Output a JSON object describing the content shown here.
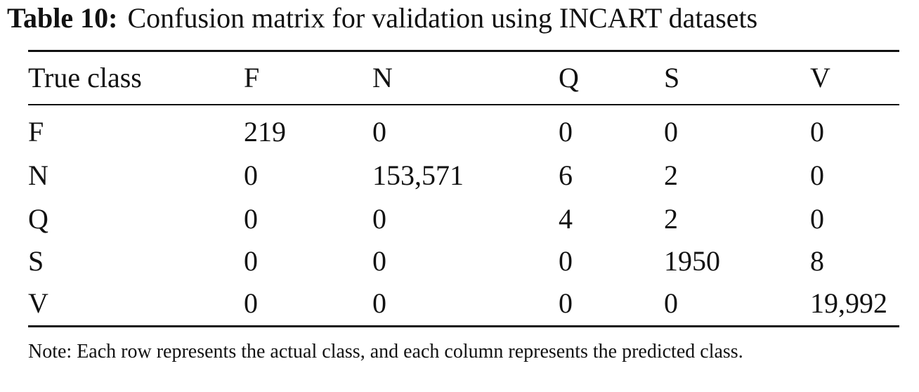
{
  "title": {
    "label": "Table 10:",
    "text": "Confusion matrix for validation using INCART datasets"
  },
  "table": {
    "header": [
      "True class",
      "F",
      "N",
      "Q",
      "S",
      "V"
    ],
    "rows": [
      [
        "F",
        "219",
        "0",
        "0",
        "0",
        "0"
      ],
      [
        "N",
        "0",
        "153,571",
        "6",
        "2",
        "0"
      ],
      [
        "Q",
        "0",
        "0",
        "4",
        "2",
        "0"
      ],
      [
        "S",
        "0",
        "0",
        "0",
        "1950",
        "8"
      ],
      [
        "V",
        "0",
        "0",
        "0",
        "0",
        "19,992"
      ]
    ]
  },
  "note": "Note: Each row represents the actual class, and each column represents the predicted class."
}
